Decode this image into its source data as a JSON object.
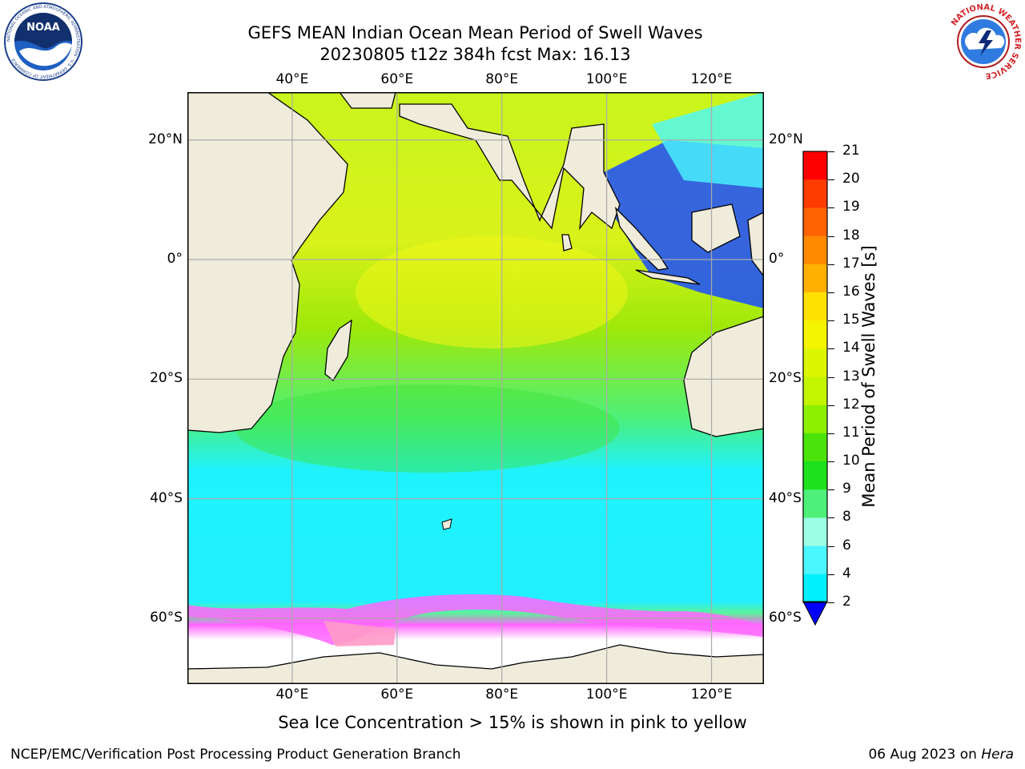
{
  "header": {
    "title_line1": "GEFS MEAN Indian Ocean Mean Period of Swell Waves",
    "title_line2": "20230805 t12z 384h fcst   Max: 16.13"
  },
  "logos": {
    "noaa_text": "NOAA",
    "noaa_ring_text": "NATIONAL OCEANIC AND ATMOSPHERIC ADMINISTRATION · U.S. DEPARTMENT OF COMMERCE",
    "nws_ring_text": "NATIONAL WEATHER SERVICE"
  },
  "map": {
    "lon_labels": [
      "40°E",
      "60°E",
      "80°E",
      "100°E",
      "120°E"
    ],
    "lat_labels": [
      "20°N",
      "0°",
      "20°S",
      "40°S",
      "60°S"
    ],
    "lon_values": [
      40,
      60,
      80,
      100,
      120
    ],
    "lat_values": [
      20,
      0,
      -20,
      -40,
      -60
    ],
    "extent": {
      "lon_min": 20,
      "lon_max": 130,
      "lat_min": -71,
      "lat_max": 28
    },
    "grid": true,
    "colors": {
      "land": "#efecdc",
      "ocean_south": "#19f4ff",
      "ocean_mid": "#4ef07a",
      "ocean_north": "#c8f51a",
      "ice": "#ff66ff",
      "maritime_se_asia": "#1a4bff"
    }
  },
  "colorbar": {
    "label": "Mean Period of Swell Waves [s]",
    "ticks": [
      "21",
      "20",
      "19",
      "18",
      "17",
      "16",
      "15",
      "14",
      "13",
      "12",
      "11",
      "10",
      "9",
      "8",
      "6",
      "4",
      "2"
    ],
    "colors": [
      "#ff0000",
      "#ff3b00",
      "#ff6200",
      "#ff8a00",
      "#ffb000",
      "#ffe000",
      "#f5f500",
      "#dcf500",
      "#c3f500",
      "#8cf000",
      "#4ae40a",
      "#1ee11e",
      "#4ef07a",
      "#9cffe6",
      "#4af7ff",
      "#00f0ff",
      "#00a4ff",
      "#0048ff"
    ]
  },
  "footer": {
    "sea_ice_note": "Sea Ice Concentration > 15% is shown in pink to yellow",
    "producer": "NCEP/EMC/Verification Post Processing Product Generation Branch",
    "date_prefix": "06 Aug 2023 on ",
    "machine": "Hera"
  }
}
